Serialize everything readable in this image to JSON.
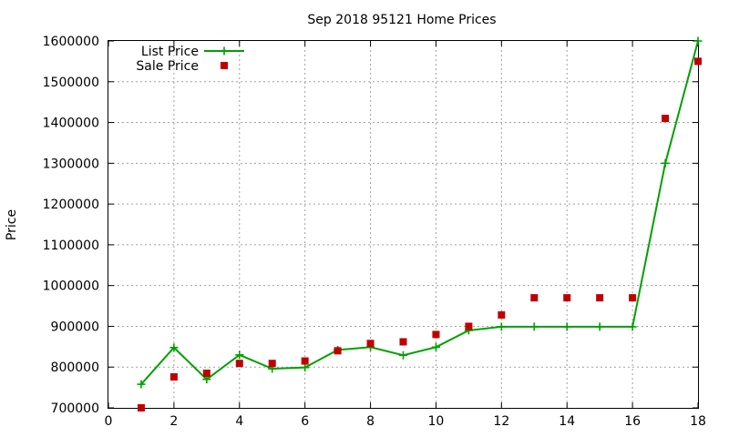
{
  "chart_data": {
    "type": "line",
    "title": "Sep 2018 95121 Home Prices",
    "xlabel": "",
    "ylabel": "Price",
    "xlim": [
      0,
      18
    ],
    "ylim": [
      700000,
      1600000
    ],
    "x_ticks": [
      "0",
      "2",
      "4",
      "6",
      "8",
      "10",
      "12",
      "14",
      "16",
      "18"
    ],
    "y_ticks": [
      "700000",
      "800000",
      "900000",
      "1000000",
      "1100000",
      "1200000",
      "1300000",
      "1400000",
      "1500000",
      "1600000"
    ],
    "grid": true,
    "legend_position": "top-left",
    "series": [
      {
        "name": "List Price",
        "style": "lines+points",
        "marker": "plus",
        "color": "#00a000",
        "x": [
          1,
          2,
          3,
          4,
          5,
          6,
          7,
          8,
          9,
          10,
          11,
          12,
          13,
          14,
          15,
          16,
          17,
          18
        ],
        "values": [
          758000,
          848000,
          770000,
          830000,
          796000,
          799000,
          842000,
          849000,
          829000,
          849000,
          890000,
          899000,
          899000,
          899000,
          899000,
          899000,
          1300000,
          1600000
        ]
      },
      {
        "name": "Sale Price",
        "style": "points",
        "marker": "square",
        "color": "#c00000",
        "x": [
          1,
          2,
          3,
          4,
          5,
          6,
          7,
          8,
          9,
          10,
          11,
          12,
          13,
          14,
          15,
          16,
          17,
          18
        ],
        "values": [
          700000,
          776000,
          785000,
          809000,
          809000,
          815000,
          840000,
          858000,
          862000,
          880000,
          900000,
          928000,
          970000,
          970000,
          970000,
          970000,
          1410000,
          1550000
        ]
      }
    ]
  }
}
